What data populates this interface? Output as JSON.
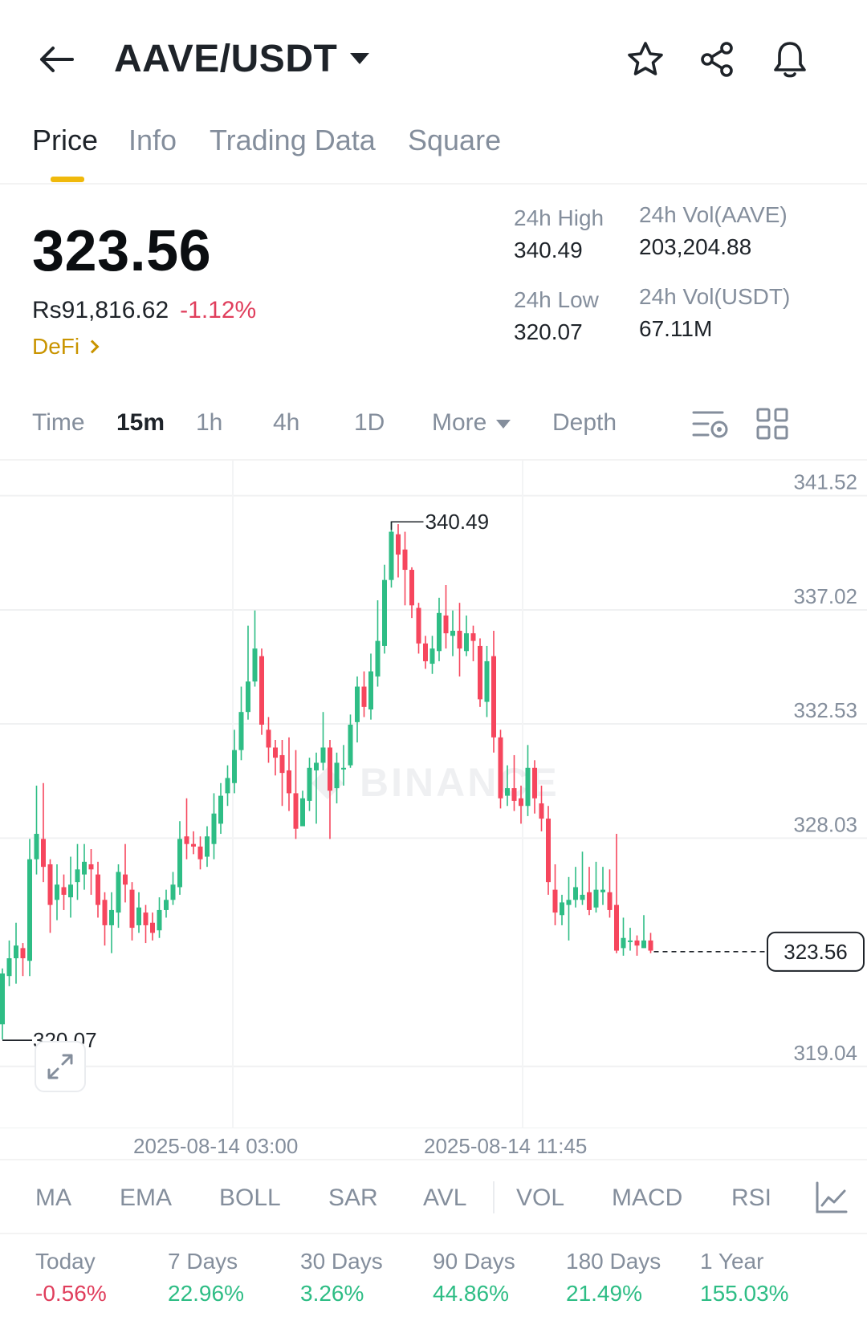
{
  "header": {
    "pair": "AAVE/USDT",
    "icons": [
      "back-arrow-icon",
      "star-icon",
      "share-icon",
      "bell-icon"
    ]
  },
  "tabs": [
    "Price",
    "Info",
    "Trading Data",
    "Square"
  ],
  "ticker": {
    "last_price": "323.56",
    "fiat_price": "Rs91,816.62",
    "change_pct": "-1.12%",
    "sector": "DeFi",
    "stats": {
      "high_label": "24h High",
      "high_value": "340.49",
      "low_label": "24h Low",
      "low_value": "320.07",
      "vol_base_label": "24h Vol(AAVE)",
      "vol_base_value": "203,204.88",
      "vol_quote_label": "24h Vol(USDT)",
      "vol_quote_value": "67.11M"
    }
  },
  "intervals": {
    "time": "Time",
    "m15": "15m",
    "h1": "1h",
    "h4": "4h",
    "d1": "1D",
    "more": "More",
    "depth": "Depth"
  },
  "chart_data": {
    "type": "candlestick",
    "watermark": "BINANCE",
    "y_ticks": [
      "341.52",
      "337.02",
      "332.53",
      "328.03",
      "319.04"
    ],
    "ylim": [
      316.6,
      342.9
    ],
    "high_marker": "340.49",
    "low_marker": "320.07",
    "current_marker": "323.56",
    "x_labels": [
      "2025-08-14 03:00",
      "2025-08-14 11:45"
    ],
    "candles": [
      [
        320.7,
        322.7,
        322.9,
        320.1
      ],
      [
        322.6,
        323.3,
        324.0,
        322.2
      ],
      [
        323.3,
        323.8,
        324.7,
        322.3
      ],
      [
        323.7,
        323.3,
        323.9,
        322.6
      ],
      [
        323.2,
        327.2,
        328.0,
        322.6
      ],
      [
        327.2,
        328.2,
        330.1,
        326.6
      ],
      [
        328.0,
        326.9,
        330.2,
        326.3
      ],
      [
        327.0,
        325.4,
        327.2,
        324.3
      ],
      [
        325.6,
        326.2,
        327.0,
        324.8
      ],
      [
        326.1,
        325.8,
        326.6,
        325.2
      ],
      [
        325.7,
        326.2,
        327.3,
        324.9
      ],
      [
        326.3,
        326.8,
        327.8,
        325.6
      ],
      [
        326.6,
        327.1,
        327.8,
        326.0
      ],
      [
        327.0,
        326.8,
        327.6,
        325.8
      ],
      [
        326.6,
        325.4,
        327.1,
        324.9
      ],
      [
        325.6,
        324.6,
        325.9,
        323.8
      ],
      [
        324.6,
        325.2,
        325.9,
        323.5
      ],
      [
        325.1,
        326.7,
        327.0,
        324.5
      ],
      [
        326.6,
        326.2,
        327.8,
        325.5
      ],
      [
        326.0,
        324.5,
        326.3,
        324.0
      ],
      [
        324.6,
        325.3,
        325.9,
        324.3
      ],
      [
        325.1,
        324.6,
        325.4,
        323.9
      ],
      [
        324.7,
        324.3,
        325.1,
        324.0
      ],
      [
        324.4,
        325.2,
        325.7,
        324.1
      ],
      [
        325.2,
        325.6,
        326.0,
        324.9
      ],
      [
        325.6,
        326.2,
        326.7,
        325.4
      ],
      [
        326.1,
        328.0,
        328.7,
        325.8
      ],
      [
        328.1,
        327.8,
        329.6,
        327.2
      ],
      [
        327.8,
        327.7,
        328.3,
        327.4
      ],
      [
        327.7,
        327.2,
        328.1,
        326.8
      ],
      [
        327.3,
        328.1,
        328.5,
        326.9
      ],
      [
        327.8,
        329.0,
        329.8,
        327.2
      ],
      [
        328.6,
        329.7,
        330.2,
        328.2
      ],
      [
        329.8,
        330.4,
        330.9,
        329.3
      ],
      [
        330.2,
        331.5,
        332.3,
        329.8
      ],
      [
        331.5,
        333.0,
        334.0,
        331.1
      ],
      [
        333.0,
        334.2,
        336.4,
        332.7
      ],
      [
        334.2,
        335.5,
        337.0,
        334.0
      ],
      [
        335.2,
        332.5,
        335.5,
        332.1
      ],
      [
        332.3,
        331.6,
        332.8,
        331.0
      ],
      [
        331.6,
        331.2,
        331.9,
        330.5
      ],
      [
        331.3,
        330.6,
        331.9,
        329.3
      ],
      [
        330.7,
        329.8,
        332.0,
        329.1
      ],
      [
        329.8,
        328.4,
        331.5,
        328.0
      ],
      [
        328.5,
        329.6,
        329.9,
        328.7
      ],
      [
        329.5,
        330.8,
        331.2,
        329.1
      ],
      [
        330.7,
        331.0,
        331.4,
        328.6
      ],
      [
        331.0,
        331.6,
        333.0,
        330.7
      ],
      [
        331.6,
        329.9,
        331.9,
        328.0
      ],
      [
        330.0,
        331.0,
        331.4,
        329.4
      ],
      [
        330.8,
        330.8,
        331.7,
        330.1
      ],
      [
        330.9,
        332.5,
        332.9,
        330.8
      ],
      [
        332.6,
        334.0,
        334.4,
        331.8
      ],
      [
        334.0,
        333.2,
        334.6,
        332.8
      ],
      [
        333.1,
        334.6,
        335.3,
        332.7
      ],
      [
        334.4,
        335.8,
        337.4,
        334.0
      ],
      [
        335.6,
        338.2,
        338.8,
        335.3
      ],
      [
        338.2,
        340.1,
        340.5,
        337.9
      ],
      [
        340.0,
        339.2,
        340.4,
        338.3
      ],
      [
        339.4,
        338.6,
        340.1,
        337.2
      ],
      [
        338.6,
        337.2,
        338.7,
        336.7
      ],
      [
        337.1,
        335.7,
        337.3,
        335.3
      ],
      [
        335.7,
        335.0,
        336.0,
        334.7
      ],
      [
        334.9,
        335.5,
        336.0,
        334.5
      ],
      [
        335.4,
        336.9,
        337.5,
        335.0
      ],
      [
        336.8,
        336.1,
        338.0,
        335.5
      ],
      [
        336.0,
        336.2,
        337.0,
        335.2
      ],
      [
        336.2,
        335.5,
        337.3,
        334.4
      ],
      [
        335.4,
        336.1,
        336.8,
        335.2
      ],
      [
        336.1,
        335.8,
        336.4,
        335.0
      ],
      [
        335.6,
        333.5,
        335.9,
        333.2
      ],
      [
        333.4,
        335.0,
        335.6,
        332.8
      ],
      [
        335.2,
        332.0,
        336.2,
        331.4
      ],
      [
        332.0,
        329.6,
        332.3,
        329.2
      ],
      [
        329.7,
        330.0,
        330.9,
        329.3
      ],
      [
        330.0,
        329.5,
        331.3,
        329.1
      ],
      [
        329.6,
        329.3,
        330.1,
        328.6
      ],
      [
        329.3,
        330.8,
        331.7,
        328.9
      ],
      [
        330.8,
        329.6,
        331.1,
        329.0
      ],
      [
        329.4,
        328.8,
        330.1,
        328.3
      ],
      [
        328.8,
        326.3,
        329.3,
        325.8
      ],
      [
        326.0,
        325.1,
        327.0,
        324.6
      ],
      [
        325.0,
        325.5,
        325.8,
        324.6
      ],
      [
        325.4,
        325.6,
        326.5,
        324.0
      ],
      [
        325.6,
        326.1,
        326.9,
        325.3
      ],
      [
        325.6,
        325.8,
        327.5,
        325.4
      ],
      [
        325.9,
        325.2,
        326.9,
        325.0
      ],
      [
        325.3,
        326.0,
        327.1,
        325.1
      ],
      [
        325.9,
        326.0,
        326.9,
        325.4
      ],
      [
        325.9,
        325.2,
        326.8,
        324.9
      ],
      [
        325.4,
        323.6,
        328.2,
        323.5
      ],
      [
        323.7,
        324.1,
        324.9,
        323.4
      ],
      [
        324.0,
        324.0,
        324.5,
        323.6
      ],
      [
        324.0,
        323.8,
        324.2,
        323.4
      ],
      [
        323.7,
        324.0,
        325.0,
        323.7
      ],
      [
        324.0,
        323.6,
        324.3,
        323.5
      ]
    ]
  },
  "indicators": [
    "MA",
    "EMA",
    "BOLL",
    "SAR",
    "AVL",
    "VOL",
    "MACD",
    "RSI"
  ],
  "performance": [
    {
      "label": "Today",
      "value": "-0.56%"
    },
    {
      "label": "7 Days",
      "value": "22.96%"
    },
    {
      "label": "30 Days",
      "value": "3.26%"
    },
    {
      "label": "90 Days",
      "value": "44.86%"
    },
    {
      "label": "180 Days",
      "value": "21.49%"
    },
    {
      "label": "1 Year",
      "value": "155.03%"
    }
  ]
}
